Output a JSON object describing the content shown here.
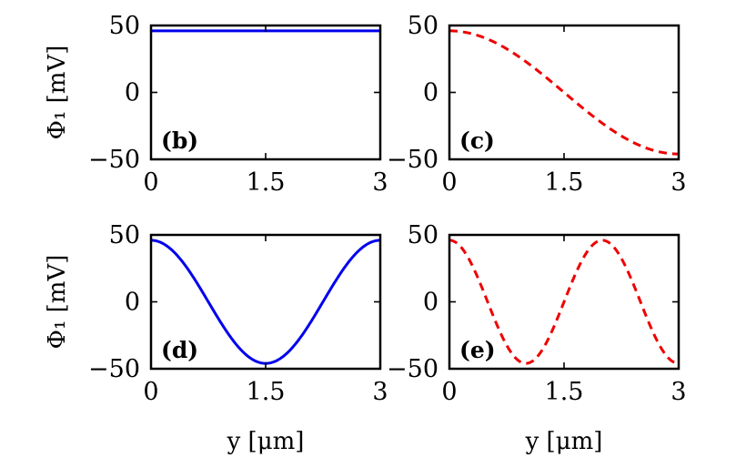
{
  "chart_data": [
    {
      "type": "line",
      "panel": "(b)",
      "ylabel": "Φ₁ [mV]",
      "xlabel": "",
      "xlim": [
        0,
        3
      ],
      "ylim": [
        -50,
        50
      ],
      "xticks": [
        "0",
        "1.5",
        "3"
      ],
      "yticks": [
        "50",
        "0",
        "−50"
      ],
      "grid": false,
      "series": [
        {
          "style": "solid",
          "color": "#0000ee",
          "function": "constant",
          "amplitude": 46,
          "periods": 0
        }
      ]
    },
    {
      "type": "line",
      "panel": "(c)",
      "ylabel": "",
      "xlabel": "",
      "xlim": [
        0,
        3
      ],
      "ylim": [
        -50,
        50
      ],
      "xticks": [
        "0",
        "1.5",
        "3"
      ],
      "yticks": [
        "50",
        "0",
        "−50"
      ],
      "grid": false,
      "series": [
        {
          "style": "dashed",
          "color": "#ee0000",
          "function": "cosine",
          "amplitude": 46,
          "periods": 0.5
        }
      ]
    },
    {
      "type": "line",
      "panel": "(d)",
      "ylabel": "Φ₁ [mV]",
      "xlabel": "y [μm]",
      "xlim": [
        0,
        3
      ],
      "ylim": [
        -50,
        50
      ],
      "xticks": [
        "0",
        "1.5",
        "3"
      ],
      "yticks": [
        "50",
        "0",
        "−50"
      ],
      "grid": false,
      "series": [
        {
          "style": "solid",
          "color": "#0000ee",
          "function": "cosine",
          "amplitude": 46,
          "periods": 1
        }
      ]
    },
    {
      "type": "line",
      "panel": "(e)",
      "ylabel": "",
      "xlabel": "y [μm]",
      "xlim": [
        0,
        3
      ],
      "ylim": [
        -50,
        50
      ],
      "xticks": [
        "0",
        "1.5",
        "3"
      ],
      "yticks": [
        "50",
        "0",
        "−50"
      ],
      "grid": false,
      "series": [
        {
          "style": "dashed",
          "color": "#ee0000",
          "function": "cosine",
          "amplitude": 46,
          "periods": 1.5
        }
      ]
    }
  ]
}
